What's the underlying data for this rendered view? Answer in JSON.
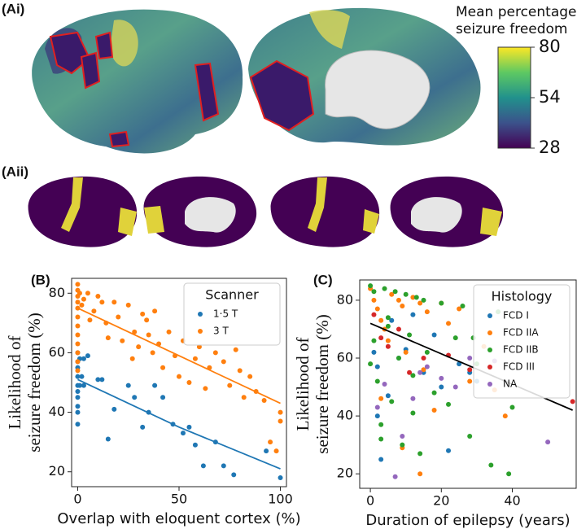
{
  "panel_labels": [
    "(Ai)",
    "(Aii)",
    "(B)",
    "(C)"
  ],
  "chart_data": [
    {
      "type": "colorbar",
      "title": [
        "Mean percentage",
        "seizure freedom"
      ],
      "colors": [
        "#440154",
        "#3b528b",
        "#21918c",
        "#5ec962",
        "#fde725"
      ],
      "ylim": [
        28,
        80
      ],
      "yticks": [
        28,
        54,
        80
      ]
    },
    {
      "type": "scatter",
      "x_label": "Overlap with eloquent cortex (%)",
      "y_label": [
        "Likelihood of",
        "seizure freedom (%)"
      ],
      "xlim": [
        -3,
        103
      ],
      "ylim": [
        15,
        85
      ],
      "xticks": [
        0,
        50,
        100
      ],
      "yticks": [
        20,
        40,
        60,
        80
      ],
      "legend_title": "Scanner",
      "legend": "upper right",
      "series": [
        {
          "name": "1·5 T",
          "color": "#1f77b4",
          "x": [
            0,
            0,
            0,
            0,
            0,
            0,
            0,
            0,
            0,
            0,
            1,
            1,
            2,
            3,
            3,
            5,
            10,
            12,
            15,
            18,
            25,
            28,
            32,
            35,
            38,
            42,
            47,
            52,
            55,
            58,
            62,
            68,
            72,
            77,
            93,
            100
          ],
          "values": [
            40,
            42,
            45,
            47,
            49,
            52,
            55,
            57,
            60,
            36,
            58,
            49,
            52,
            49,
            58,
            59,
            51,
            51,
            31,
            41,
            49,
            45,
            35,
            40,
            49,
            45,
            36,
            33,
            35,
            29,
            22,
            30,
            22,
            19,
            27,
            18
          ]
        },
        {
          "name": "3 T",
          "color": "#ff7f0e",
          "x": [
            0,
            0,
            0,
            0,
            0,
            0,
            0,
            0,
            0,
            0,
            0,
            0,
            1,
            2,
            3,
            5,
            6,
            8,
            10,
            12,
            14,
            15,
            18,
            20,
            22,
            25,
            27,
            28,
            30,
            32,
            34,
            35,
            37,
            38,
            40,
            42,
            45,
            48,
            50,
            52,
            55,
            58,
            60,
            63,
            65,
            68,
            72,
            75,
            78,
            80,
            82,
            85,
            88,
            92,
            95,
            98,
            100,
            100
          ],
          "values": [
            83,
            81,
            79,
            77,
            75,
            72,
            69,
            66,
            63,
            60,
            57,
            54,
            80,
            76,
            78,
            80,
            71,
            74,
            79,
            77,
            70,
            65,
            77,
            72,
            64,
            76,
            58,
            67,
            62,
            73,
            71,
            66,
            60,
            74,
            63,
            55,
            67,
            59,
            52,
            64,
            50,
            58,
            62,
            48,
            55,
            60,
            57,
            49,
            61,
            54,
            45,
            52,
            47,
            44,
            30,
            27,
            40,
            37
          ]
        }
      ],
      "lines": [
        {
          "color": "#1f77b4",
          "x": [
            0,
            50,
            100
          ],
          "values": [
            51,
            35,
            21
          ]
        },
        {
          "color": "#ff7f0e",
          "x": [
            0,
            50,
            100
          ],
          "values": [
            75,
            59,
            43
          ]
        }
      ]
    },
    {
      "type": "scatter",
      "x_label": "Duration of epilepsy (years)",
      "y_label": [
        "Likelihood of",
        "seizure freedom (%)"
      ],
      "xlim": [
        -3,
        58
      ],
      "ylim": [
        15,
        87
      ],
      "xticks": [
        0,
        20,
        40
      ],
      "yticks": [
        20,
        40,
        60,
        80
      ],
      "legend_title": "Histology",
      "legend": "upper right",
      "series": [
        {
          "name": "FCD I",
          "color": "#1f77b4",
          "x": [
            1,
            2,
            3,
            5,
            8,
            10,
            12,
            15,
            18,
            20,
            22,
            25,
            28,
            30,
            2,
            6
          ],
          "values": [
            62,
            40,
            25,
            47,
            60,
            63,
            75,
            55,
            68,
            50,
            28,
            58,
            55,
            52,
            57,
            73
          ]
        },
        {
          "name": "FCD IIA",
          "color": "#ff7f0e",
          "x": [
            0,
            1,
            2,
            3,
            4,
            5,
            6,
            8,
            9,
            10,
            12,
            14,
            15,
            16,
            18,
            20,
            22,
            25,
            28,
            32,
            35,
            38,
            9,
            14,
            3
          ],
          "values": [
            84,
            80,
            77,
            73,
            70,
            66,
            82,
            80,
            78,
            62,
            81,
            79,
            56,
            76,
            42,
            79,
            72,
            77,
            52,
            64,
            49,
            40,
            29,
            20,
            46
          ]
        },
        {
          "name": "FCD IIB",
          "color": "#2ca02c",
          "x": [
            0,
            0,
            1,
            1,
            2,
            3,
            4,
            5,
            6,
            7,
            8,
            9,
            10,
            11,
            12,
            13,
            14,
            15,
            16,
            18,
            20,
            22,
            24,
            26,
            28,
            30,
            34,
            36,
            40,
            3,
            5,
            12,
            29,
            39
          ],
          "values": [
            85,
            58,
            83,
            66,
            52,
            37,
            84,
            71,
            45,
            83,
            60,
            30,
            82,
            68,
            54,
            81,
            27,
            80,
            62,
            48,
            79,
            44,
            67,
            78,
            33,
            58,
            23,
            76,
            43,
            32,
            74,
            41,
            67,
            20
          ]
        },
        {
          "name": "FCD III",
          "color": "#d62728",
          "x": [
            1,
            3,
            5,
            8,
            11,
            15,
            22,
            28,
            57
          ],
          "values": [
            75,
            67,
            64,
            70,
            55,
            60,
            61,
            56,
            45
          ]
        },
        {
          "name": "NA",
          "color": "#9467bd",
          "x": [
            2,
            4,
            7,
            9,
            12,
            14,
            16,
            20,
            24,
            28,
            35,
            50
          ],
          "values": [
            43,
            51,
            19,
            33,
            46,
            55,
            57,
            53,
            50,
            60,
            59,
            31
          ]
        }
      ],
      "lines": [
        {
          "color": "#000000",
          "x": [
            0,
            57
          ],
          "values": [
            72,
            42
          ]
        }
      ]
    }
  ]
}
